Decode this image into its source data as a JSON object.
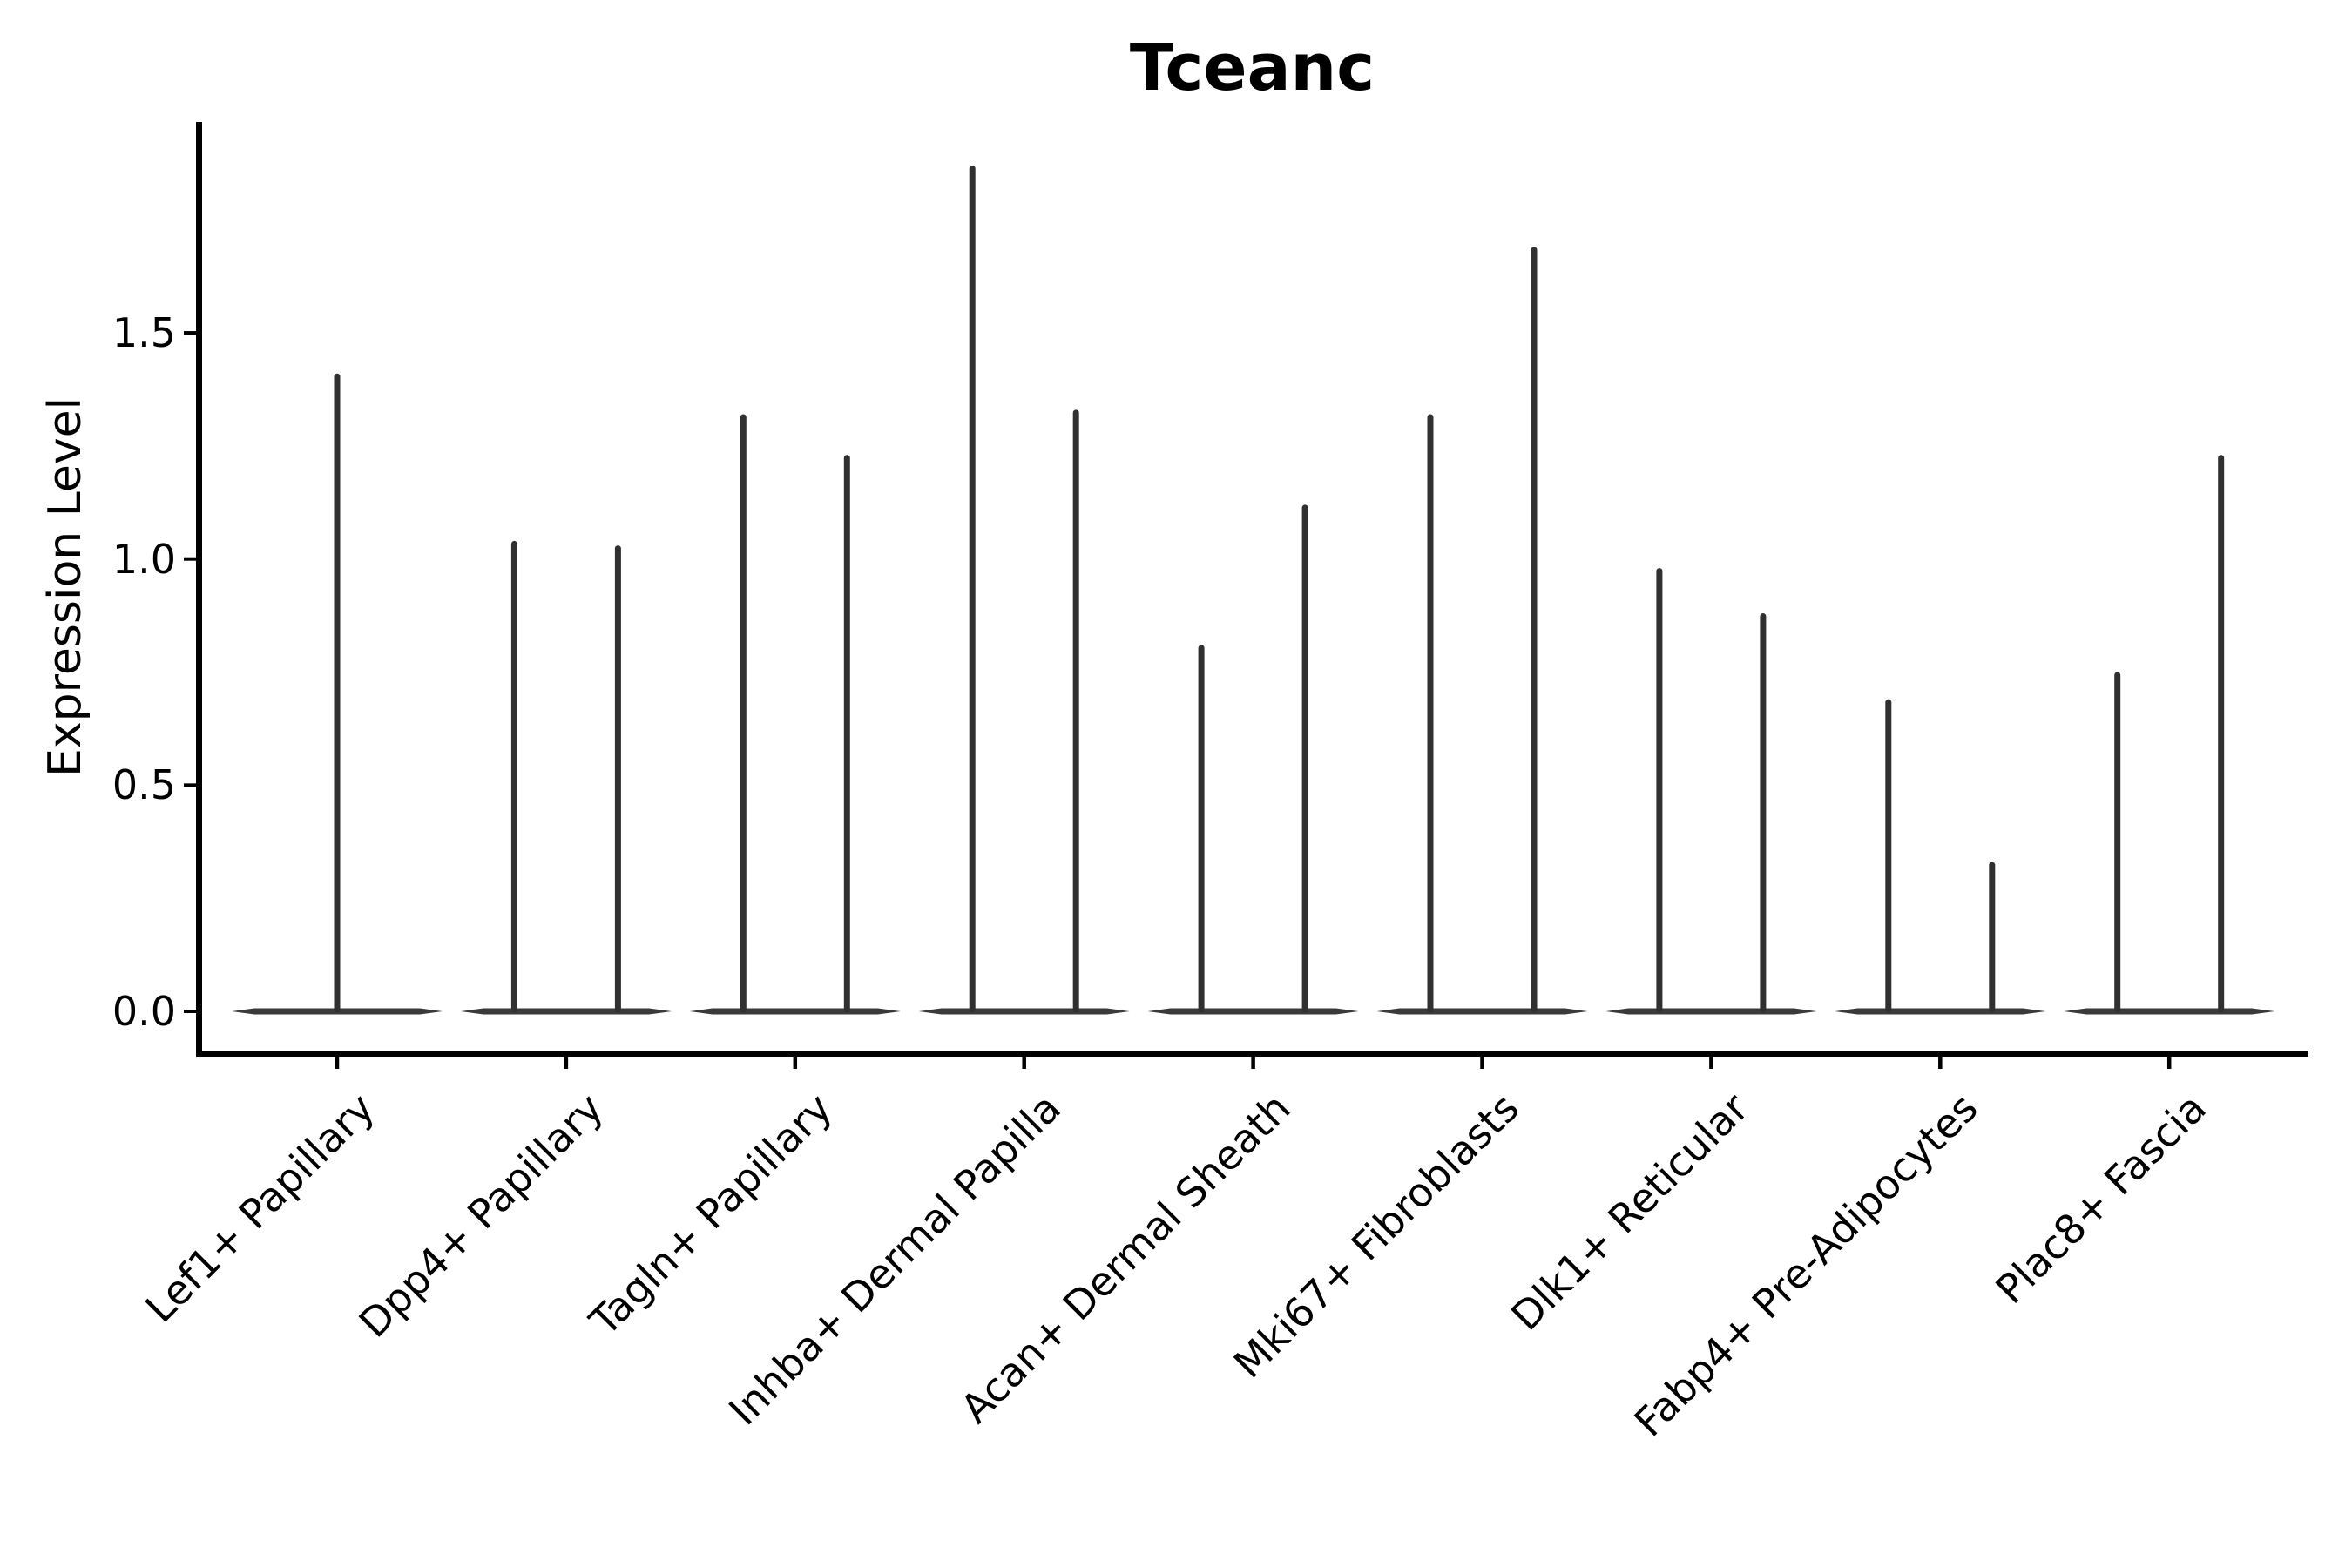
{
  "chart_data": {
    "type": "violin",
    "title": "Tceanc",
    "ylabel": "Expression Level",
    "xlabel": "",
    "ylim": [
      0,
      1.97
    ],
    "yticks": [
      "0.0",
      "0.5",
      "1.0",
      "1.5"
    ],
    "ytick_values": [
      0.0,
      0.5,
      1.0,
      1.5
    ],
    "grid": false,
    "legend": "none",
    "baseline_value": 0.0,
    "note": "Each cell-type category shows narrow violins whose density mass sits at 0 (wide flat base) with a thin spike rising to the maximum expression value.",
    "violin_color": "#303030",
    "axis_color": "#000000",
    "categories": [
      "Lef1+ Papillary",
      "Dpp4+ Papillary",
      "Tagln+ Papillary",
      "Inhba+ Dermal Papilla",
      "Acan+ Dermal Sheath",
      "Mki67+ Fibroblasts",
      "Dlk1+ Reticular",
      "Fabp4+ Pre-Adipocytes",
      "Plac8+ Fascia"
    ],
    "groups": [
      {
        "category": "Lef1+ Papillary",
        "violin_max_values": [
          1.41
        ]
      },
      {
        "category": "Dpp4+ Papillary",
        "violin_max_values": [
          1.04,
          1.03
        ]
      },
      {
        "category": "Tagln+ Papillary",
        "violin_max_values": [
          1.32,
          1.23
        ]
      },
      {
        "category": "Inhba+ Dermal Papilla",
        "violin_max_values": [
          1.87,
          1.33
        ]
      },
      {
        "category": "Acan+ Dermal Sheath",
        "violin_max_values": [
          0.81,
          1.12
        ]
      },
      {
        "category": "Mki67+ Fibroblasts",
        "violin_max_values": [
          1.32,
          1.69
        ]
      },
      {
        "category": "Dlk1+ Reticular",
        "violin_max_values": [
          0.98,
          0.88
        ]
      },
      {
        "category": "Fabp4+ Pre-Adipocytes",
        "violin_max_values": [
          0.69,
          0.33
        ]
      },
      {
        "category": "Plac8+ Fascia",
        "violin_max_values": [
          0.75,
          1.23
        ]
      }
    ]
  }
}
